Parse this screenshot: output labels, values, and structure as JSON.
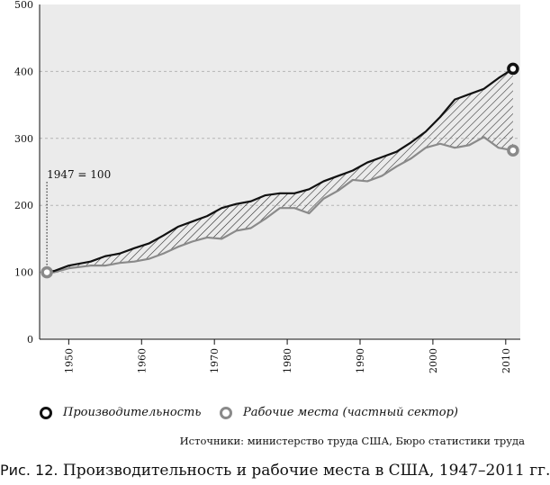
{
  "chart_data": {
    "type": "line",
    "x": [
      1947,
      1948,
      1950,
      1953,
      1955,
      1957,
      1959,
      1961,
      1963,
      1965,
      1967,
      1969,
      1971,
      1973,
      1975,
      1977,
      1979,
      1981,
      1983,
      1985,
      1987,
      1989,
      1991,
      1993,
      1995,
      1997,
      1999,
      2001,
      2003,
      2005,
      2007,
      2009,
      2011
    ],
    "series": [
      {
        "name": "Производительность",
        "color": "#111111",
        "values": [
          100,
          102,
          110,
          116,
          124,
          128,
          136,
          143,
          155,
          168,
          176,
          184,
          196,
          202,
          206,
          215,
          218,
          218,
          224,
          236,
          244,
          252,
          264,
          272,
          280,
          294,
          310,
          332,
          358,
          366,
          374,
          390,
          404
        ]
      },
      {
        "name": "Рабочие места (частный сектор)",
        "color": "#8a8a8a",
        "values": [
          100,
          100,
          106,
          110,
          110,
          114,
          116,
          120,
          128,
          138,
          146,
          152,
          150,
          162,
          166,
          180,
          196,
          196,
          188,
          210,
          222,
          238,
          236,
          244,
          258,
          270,
          286,
          292,
          286,
          290,
          302,
          286,
          282
        ]
      }
    ],
    "ylim": [
      0,
      500
    ],
    "xlim": [
      1946,
      2012
    ],
    "yticks": [
      0,
      100,
      200,
      300,
      400,
      500
    ],
    "xticks": [
      1950,
      1960,
      1970,
      1980,
      1990,
      2000,
      2010
    ],
    "gridlines": "horizontal, dashed",
    "fill_between": "hatched",
    "annotation": "1947 = 100"
  },
  "legend": {
    "productivity": "Производительность",
    "jobs": "Рабочие места (частный сектор)"
  },
  "source": "Источники: министерство труда США, Бюро статистики труда",
  "caption": {
    "number": "Рис. 12.",
    "text": " Производительность и рабочие места в США, 1947–2011 гг."
  }
}
